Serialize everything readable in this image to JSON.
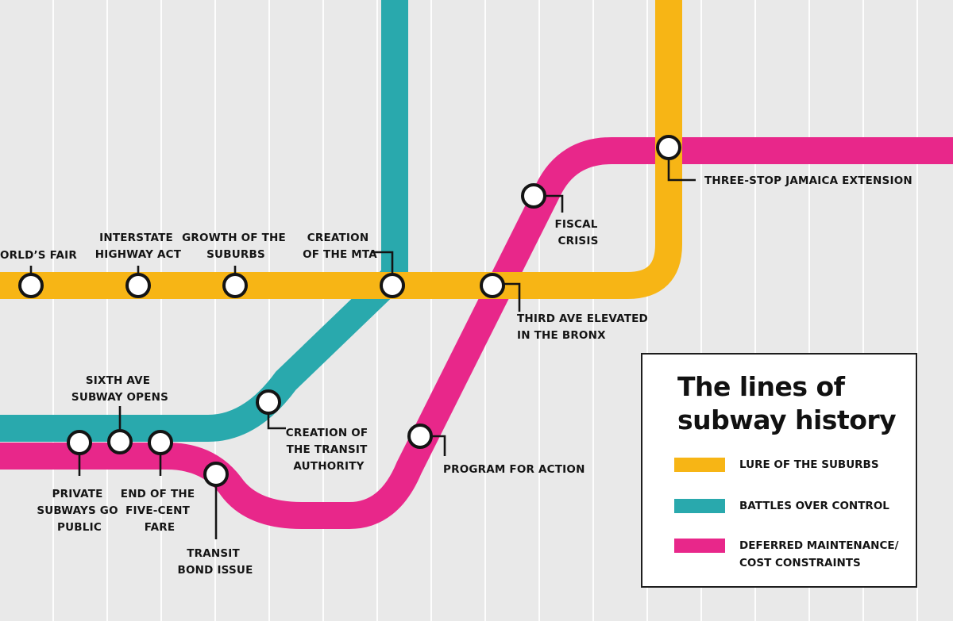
{
  "colors": {
    "lure": "#f7b515",
    "battles": "#29a9ad",
    "deferred": "#e8278a",
    "stop_fill": "#ffffff",
    "stop_outline": "#141414"
  },
  "legend": {
    "title": "The lines of\nsubway history",
    "items": [
      {
        "label": "LURE OF THE SUBURBS",
        "color": "#f7b515"
      },
      {
        "label": "BATTLES OVER CONTROL",
        "color": "#29a9ad"
      },
      {
        "label": "DEFERRED MAINTENANCE/\nCOST CONSTRAINTS",
        "color": "#e8278a"
      }
    ]
  },
  "stations": {
    "worlds_fair": [
      "ORLD’S FAIR"
    ],
    "interstate": [
      "INTERSTATE",
      "HIGHWAY ACT"
    ],
    "suburbs": [
      "GROWTH OF THE",
      "SUBURBS"
    ],
    "mta": [
      "CREATION",
      "OF THE MTA"
    ],
    "third_ave": [
      "THIRD AVE ELEVATED",
      "IN THE BRONX"
    ],
    "jamaica": [
      "THREE-STOP JAMAICA EXTENSION"
    ],
    "fiscal": [
      "FISCAL",
      "CRISIS"
    ],
    "transit_authority": [
      "CREATION OF",
      "THE TRANSIT",
      "AUTHORITY"
    ],
    "program": [
      "PROGRAM FOR ACTION"
    ],
    "sixth_ave": [
      "SIXTH AVE",
      "SUBWAY OPENS"
    ],
    "private": [
      "PRIVATE",
      "SUBWAYS GO",
      "PUBLIC"
    ],
    "five_cent": [
      "END OF THE",
      "FIVE-CENT",
      "FARE"
    ],
    "bond": [
      "TRANSIT",
      "BOND ISSUE"
    ]
  }
}
